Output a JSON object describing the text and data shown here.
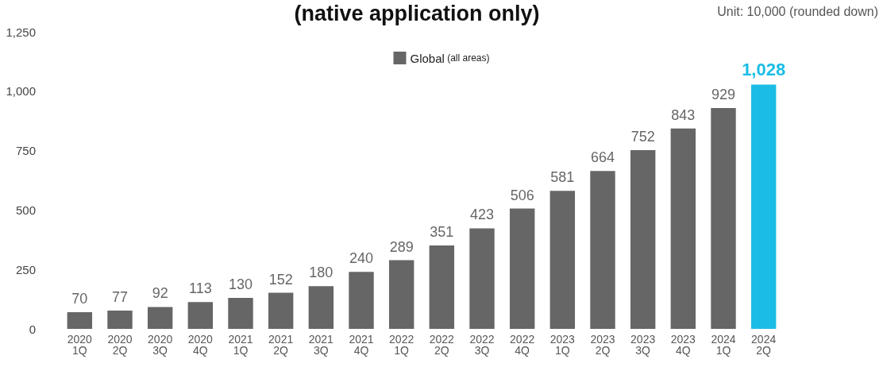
{
  "chart_data": {
    "type": "bar",
    "title": "(native application only)",
    "annotations": [
      "Unit: 10,000 (rounded down)"
    ],
    "categories": [
      "2020\n1Q",
      "2020\n2Q",
      "2020\n3Q",
      "2020\n4Q",
      "2021\n1Q",
      "2021\n2Q",
      "2021\n3Q",
      "2021\n4Q",
      "2022\n1Q",
      "2022\n2Q",
      "2022\n3Q",
      "2022\n4Q",
      "2023\n1Q",
      "2023\n2Q",
      "2023\n3Q",
      "2023\n4Q",
      "2024\n1Q",
      "2024\n2Q"
    ],
    "series": [
      {
        "name": "Global (all areas)",
        "color": "#666666",
        "values": [
          70,
          77,
          92,
          113,
          130,
          152,
          180,
          240,
          289,
          351,
          423,
          506,
          581,
          664,
          752,
          843,
          929,
          1028
        ],
        "value_labels": [
          "70",
          "77",
          "92",
          "113",
          "130",
          "152",
          "180",
          "240",
          "289",
          "351",
          "423",
          "506",
          "581",
          "664",
          "752",
          "843",
          "929",
          "1,028"
        ],
        "colors": [
          "#666666",
          "#666666",
          "#666666",
          "#666666",
          "#666666",
          "#666666",
          "#666666",
          "#666666",
          "#666666",
          "#666666",
          "#666666",
          "#666666",
          "#666666",
          "#666666",
          "#666666",
          "#666666",
          "#666666",
          "#1bbde6"
        ]
      }
    ],
    "ylim": [
      0,
      1250
    ],
    "yticks": [
      0,
      250,
      500,
      750,
      {
        "value": 1000,
        "label": "1,000"
      },
      {
        "value": 1250,
        "label": "1,250"
      }
    ],
    "grid": false,
    "legend": "top"
  }
}
